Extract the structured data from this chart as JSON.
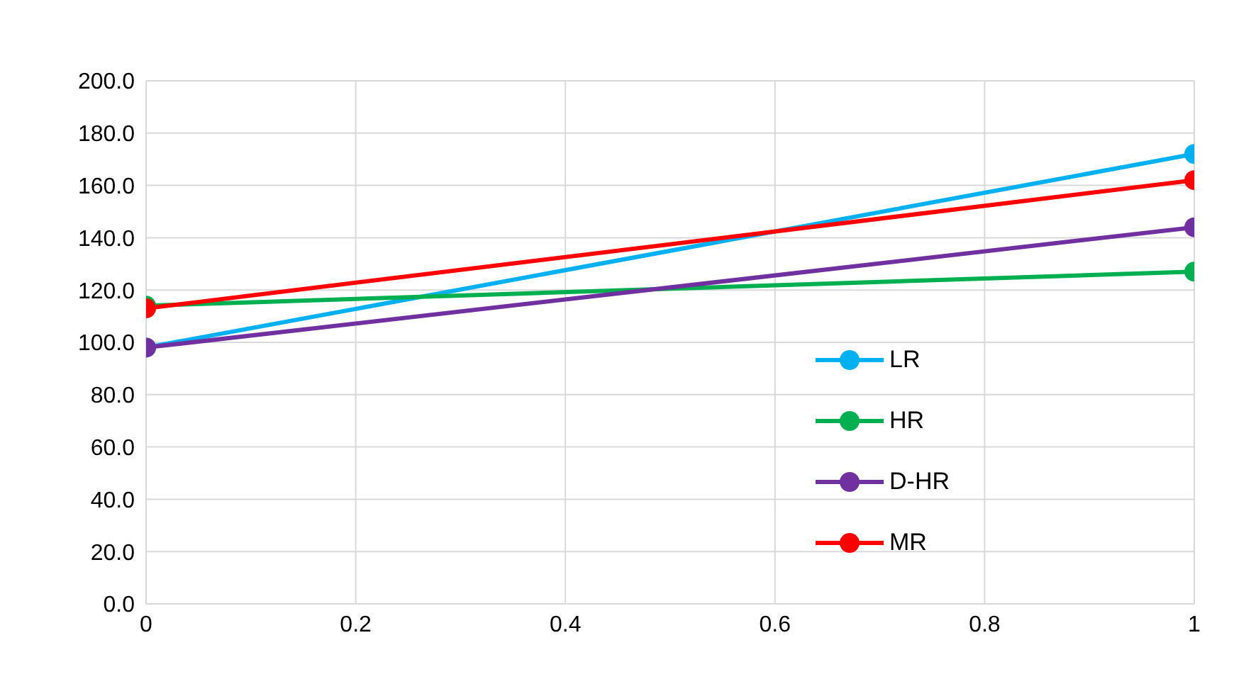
{
  "chart_data": {
    "type": "line",
    "x": [
      0,
      1
    ],
    "series": [
      {
        "name": "LR",
        "color": "#00b0f0",
        "values": [
          98,
          172
        ]
      },
      {
        "name": "HR",
        "color": "#00b050",
        "values": [
          114,
          127
        ]
      },
      {
        "name": "D-HR",
        "color": "#7030a0",
        "values": [
          98,
          144
        ]
      },
      {
        "name": "MR",
        "color": "#ff0000",
        "values": [
          113,
          162
        ]
      }
    ],
    "xlim": [
      0,
      1
    ],
    "xticks": [
      0,
      0.2,
      0.4,
      0.6,
      0.8,
      1
    ],
    "ylim": [
      0,
      200
    ],
    "yticks": [
      {
        "value": 0,
        "label": "0.0"
      },
      {
        "value": 20,
        "label": "20.0"
      },
      {
        "value": 40,
        "label": "40.0"
      },
      {
        "value": 60,
        "label": "60.0"
      },
      {
        "value": 80,
        "label": "80.0"
      },
      {
        "value": 100,
        "label": "100.0"
      },
      {
        "value": 120,
        "label": "120.0"
      },
      {
        "value": 140,
        "label": "140.0"
      },
      {
        "value": 160,
        "label": "160.0"
      },
      {
        "value": 180,
        "label": "180.0"
      },
      {
        "value": 200,
        "label": "200.0"
      }
    ],
    "grid": true,
    "legend": "right",
    "marker": "circle",
    "line_style": "solid"
  }
}
